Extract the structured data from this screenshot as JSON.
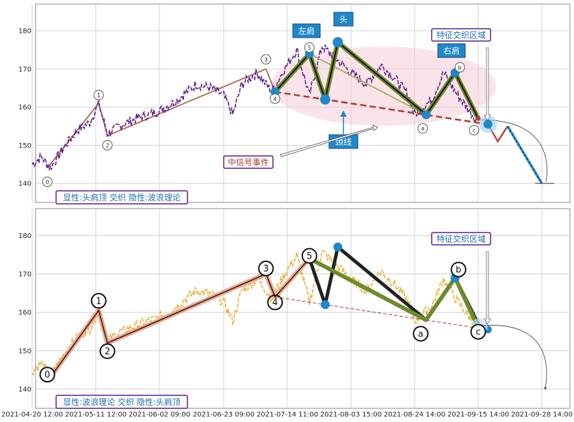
{
  "chart_data": [
    {
      "type": "line",
      "title": "",
      "xlabel": "",
      "ylabel": "",
      "ylim": [
        135,
        187
      ],
      "yticks": [
        140,
        150,
        160,
        170,
        180
      ],
      "x_ticks": [
        "2021-04-20 12:00",
        "2021-05-11 12:00",
        "2021-06-02 09:00",
        "2021-06-23 09:00",
        "2021-07-14 11:00",
        "2021-08-03 15:00",
        "2021-08-24 14:00",
        "2021-09-15 14:00",
        "2021-09-28 14:00"
      ],
      "grid": true,
      "price_color": "#5b1a8c",
      "price_anchors": [
        {
          "x": "2021-04-20 12:00",
          "y": 145
        },
        {
          "x": "2021-04-23 12:00",
          "y": 147
        },
        {
          "x": "2021-04-26 12:00",
          "y": 144
        },
        {
          "x": "2021-05-01 12:00",
          "y": 150
        },
        {
          "x": "2021-05-05 12:00",
          "y": 154
        },
        {
          "x": "2021-05-09 12:00",
          "y": 156
        },
        {
          "x": "2021-05-12 12:00",
          "y": 161
        },
        {
          "x": "2021-05-15 12:00",
          "y": 153
        },
        {
          "x": "2021-05-19 12:00",
          "y": 155
        },
        {
          "x": "2021-05-25 12:00",
          "y": 157
        },
        {
          "x": "2021-06-02 09:00",
          "y": 159
        },
        {
          "x": "2021-06-08 09:00",
          "y": 162
        },
        {
          "x": "2021-06-14 09:00",
          "y": 166
        },
        {
          "x": "2021-06-19 09:00",
          "y": 165
        },
        {
          "x": "2021-06-23 09:00",
          "y": 163
        },
        {
          "x": "2021-06-26 09:00",
          "y": 158
        },
        {
          "x": "2021-06-29 09:00",
          "y": 166
        },
        {
          "x": "2021-07-04 09:00",
          "y": 169
        },
        {
          "x": "2021-07-07 09:00",
          "y": 166
        },
        {
          "x": "2021-07-09 09:00",
          "y": 164
        },
        {
          "x": "2021-07-13 11:00",
          "y": 170
        },
        {
          "x": "2021-07-17 11:00",
          "y": 175
        },
        {
          "x": "2021-07-21 11:00",
          "y": 163
        },
        {
          "x": "2021-07-25 11:00",
          "y": 176
        },
        {
          "x": "2021-07-29 11:00",
          "y": 173
        },
        {
          "x": "2021-08-03 15:00",
          "y": 169
        },
        {
          "x": "2021-08-08 15:00",
          "y": 166
        },
        {
          "x": "2021-08-13 15:00",
          "y": 171
        },
        {
          "x": "2021-08-18 15:00",
          "y": 167
        },
        {
          "x": "2021-08-22 14:00",
          "y": 163
        },
        {
          "x": "2021-08-24 14:00",
          "y": 158
        },
        {
          "x": "2021-08-30 14:00",
          "y": 162
        },
        {
          "x": "2021-09-03 14:00",
          "y": 169
        },
        {
          "x": "2021-09-08 14:00",
          "y": 163
        },
        {
          "x": "2021-09-13 14:00",
          "y": 158
        },
        {
          "x": "2021-09-15 14:00",
          "y": 156
        }
      ],
      "wave_points": [
        {
          "label": "0",
          "x": "2021-04-25 12:00",
          "y": 144
        },
        {
          "label": "1",
          "x": "2021-05-12 12:00",
          "y": 161
        },
        {
          "label": "2",
          "x": "2021-05-15 12:00",
          "y": 152.5
        },
        {
          "label": "3",
          "x": "2021-07-07 09:00",
          "y": 170
        },
        {
          "label": "4",
          "x": "2021-07-10 09:00",
          "y": 164
        },
        {
          "label": "5",
          "x": "2021-07-21 11:00",
          "y": 174
        },
        {
          "label": "a",
          "x": "2021-08-28 14:00",
          "y": 158
        },
        {
          "label": "b",
          "x": "2021-09-07 14:00",
          "y": 169
        },
        {
          "label": "c",
          "x": "2021-09-15 14:00",
          "y": 157
        }
      ],
      "pattern_points": [
        {
          "name": "左肩",
          "x": "2021-07-10 09:00",
          "y": 164
        },
        {
          "x": "2021-07-21 11:00",
          "y": 174
        },
        {
          "x": "2021-07-26 11:00",
          "y": 162
        },
        {
          "name": "头",
          "x": "2021-07-30 11:00",
          "y": 177
        },
        {
          "x": "2021-08-28 14:00",
          "y": 158
        },
        {
          "name": "右肩",
          "x": "2021-09-07 14:00",
          "y": 169
        },
        {
          "x": "2021-09-15 14:00",
          "y": 157
        },
        {
          "x": "2021-09-17 14:00",
          "y": 155.5
        }
      ],
      "neckline": [
        {
          "x": "2021-07-10 09:00",
          "y": 164
        },
        {
          "x": "2021-09-17 14:00",
          "y": 155.5
        }
      ],
      "projection": [
        {
          "x": "2021-09-17 14:00",
          "y": 155.5
        },
        {
          "x": "2021-09-19 14:00",
          "y": 151
        },
        {
          "x": "2021-09-21 14:00",
          "y": 155
        },
        {
          "x": "2021-09-28 14:00",
          "y": 140
        }
      ],
      "annotations": {
        "left_shoulder": "左肩",
        "head": "头",
        "right_shoulder": "右肩",
        "neckline": "颈线",
        "signal_event": "中信号事件",
        "interweave_zone": "特征交织区域",
        "footer": "显性:头肩顶 交织 隐性:波浪理论"
      }
    },
    {
      "type": "line",
      "title": "",
      "xlabel": "",
      "ylabel": "",
      "ylim": [
        135,
        187
      ],
      "yticks": [
        140,
        150,
        160,
        170,
        180
      ],
      "x_ticks": [
        "2021-04-20 12:00",
        "2021-05-11 12:00",
        "2021-06-02 09:00",
        "2021-06-23 09:00",
        "2021-07-14 11:00",
        "2021-08-03 15:00",
        "2021-08-24 14:00",
        "2021-09-15 14:00",
        "2021-09-28 14:00"
      ],
      "grid": true,
      "price_color": "#e8b040",
      "wave_points": [
        {
          "label": "0",
          "x": "2021-04-25 12:00",
          "y": 142
        },
        {
          "label": "1",
          "x": "2021-05-12 12:00",
          "y": 160.5
        },
        {
          "label": "2",
          "x": "2021-05-15 12:00",
          "y": 152
        },
        {
          "label": "3",
          "x": "2021-07-07 09:00",
          "y": 170
        },
        {
          "label": "4",
          "x": "2021-07-10 09:00",
          "y": 164
        },
        {
          "label": "5",
          "x": "2021-07-21 11:00",
          "y": 174
        },
        {
          "label": "a",
          "x": "2021-08-28 14:00",
          "y": 158
        },
        {
          "label": "b",
          "x": "2021-09-07 14:00",
          "y": 169
        },
        {
          "label": "c",
          "x": "2021-09-15 14:00",
          "y": 156
        }
      ],
      "hs_points": [
        {
          "x": "2021-07-10 09:00",
          "y": 164
        },
        {
          "x": "2021-07-21 11:00",
          "y": 174
        },
        {
          "x": "2021-07-26 11:00",
          "y": 162
        },
        {
          "x": "2021-07-30 11:00",
          "y": 177
        },
        {
          "x": "2021-08-28 14:00",
          "y": 158
        },
        {
          "x": "2021-09-07 14:00",
          "y": 169
        },
        {
          "x": "2021-09-15 14:00",
          "y": 157
        },
        {
          "x": "2021-09-17 14:00",
          "y": 155.5
        }
      ],
      "annotations": {
        "interweave_zone": "特征交织区域",
        "footer": "显性:波浪理论 交织 隐性:头肩顶"
      }
    }
  ]
}
